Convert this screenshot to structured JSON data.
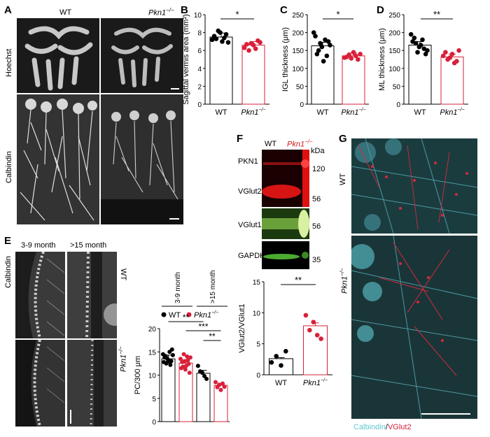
{
  "panels": {
    "A": {
      "letter": "A",
      "col_wt": "WT",
      "col_ko": "Pkn1",
      "col_ko_sup": "−/−",
      "row1": "Hoechst",
      "row2": "Calbindin"
    },
    "B": {
      "letter": "B"
    },
    "C": {
      "letter": "C"
    },
    "D": {
      "letter": "D"
    },
    "E": {
      "letter": "E",
      "col1": "3-9 month",
      "col2": ">15 month",
      "row_wt": "WT",
      "row_ko": "Pkn1",
      "row_ko_sup": "−/−",
      "stain": "Calbindin"
    },
    "F": {
      "letter": "F",
      "lane_wt": "WT",
      "lane_ko": "Pkn1",
      "lane_ko_sup": "−/−",
      "kda": "kDa",
      "bands": [
        {
          "name": "PKN1",
          "kda": "120"
        },
        {
          "name": "VGlut2",
          "kda": "56"
        },
        {
          "name": "VGlut1",
          "kda": "56"
        },
        {
          "name": "GAPDH",
          "kda": "35"
        }
      ]
    },
    "G": {
      "letter": "G",
      "row_wt": "WT",
      "row_ko": "Pkn1",
      "row_ko_sup": "−/−",
      "legend_a": "Calbindin",
      "legend_sep": "/",
      "legend_b": "VGlut2",
      "legend_a_color": "#5ec8d0",
      "legend_b_color": "#d8203a"
    }
  },
  "chart_data": [
    {
      "type": "bar",
      "panel": "B",
      "categories": [
        "WT",
        "Pkn1−/−"
      ],
      "values": [
        7.5,
        6.6
      ],
      "ylabel": "Sagittal vermis area (mm²)",
      "yticks": [
        0,
        2,
        4,
        6,
        8,
        10
      ],
      "ylim": [
        0,
        10
      ],
      "significance": "*",
      "points": [
        [
          7.2,
          7.8,
          7.0,
          8.2,
          7.6,
          6.9,
          7.4,
          8.0,
          7.3
        ],
        [
          6.3,
          6.9,
          7.1,
          6.2,
          6.6,
          6.8,
          6.0,
          6.7
        ]
      ]
    },
    {
      "type": "bar",
      "panel": "C",
      "categories": [
        "WT",
        "Pkn1−/−"
      ],
      "values": [
        163,
        135
      ],
      "ylabel": "IGL thickness (μm)",
      "yticks": [
        0,
        50,
        100,
        150,
        200,
        250
      ],
      "ylim": [
        0,
        250
      ],
      "significance": "*",
      "points": [
        [
          200,
          180,
          150,
          165,
          120,
          140,
          175,
          160,
          190,
          135,
          170
        ],
        [
          130,
          140,
          125,
          135,
          145,
          128,
          138,
          132
        ]
      ]
    },
    {
      "type": "bar",
      "panel": "D",
      "categories": [
        "WT",
        "Pkn1−/−"
      ],
      "values": [
        165,
        132
      ],
      "ylabel": "ML thickness (μm)",
      "yticks": [
        0,
        50,
        100,
        150,
        200,
        250
      ],
      "ylim": [
        0,
        250
      ],
      "significance": "**",
      "points": [
        [
          195,
          180,
          170,
          150,
          165,
          185,
          140,
          160,
          175,
          155,
          145
        ],
        [
          135,
          150,
          120,
          115,
          140,
          130,
          125,
          145
        ]
      ]
    },
    {
      "type": "bar",
      "panel": "E",
      "categories": [
        "3-9 month WT",
        "3-9 month Pkn1−/−",
        ">15 month WT",
        ">15 month Pkn1−/−"
      ],
      "values": [
        13.5,
        12.6,
        10.4,
        7.8
      ],
      "ylabel": "PC/300 μm",
      "yticks": [
        0,
        5,
        10,
        15,
        20
      ],
      "ylim": [
        0,
        20
      ],
      "legend": [
        "WT",
        "Pkn1−/−"
      ],
      "group_labels": [
        "3-9 month",
        ">15 month"
      ],
      "significance": [
        "**",
        "***",
        "**"
      ],
      "points": [
        [
          14.5,
          13.2,
          12.8,
          15.0,
          13.8,
          12.2,
          14.1,
          13.0,
          12.5,
          15.5,
          13.6,
          14.3,
          12.9
        ],
        [
          13.5,
          12.0,
          11.5,
          14.0,
          12.8,
          13.2,
          11.8,
          12.4,
          14.5,
          10.5,
          12.9,
          13.8,
          11.2
        ],
        [
          12.0,
          10.5,
          9.2,
          10.8,
          9.8
        ],
        [
          8.5,
          7.4,
          7.9,
          6.8,
          8.2,
          7.5
        ]
      ]
    },
    {
      "type": "bar",
      "panel": "F",
      "categories": [
        "WT",
        "Pkn1−/−"
      ],
      "values": [
        2.6,
        7.9
      ],
      "ylabel": "VGlut2/VGlut1",
      "yticks": [
        0,
        5,
        10,
        15
      ],
      "ylim": [
        0,
        15
      ],
      "significance": "**",
      "points": [
        [
          2.0,
          3.8,
          1.5,
          3.0
        ],
        [
          9.6,
          8.5,
          5.8,
          7.2,
          6.4
        ]
      ]
    }
  ]
}
